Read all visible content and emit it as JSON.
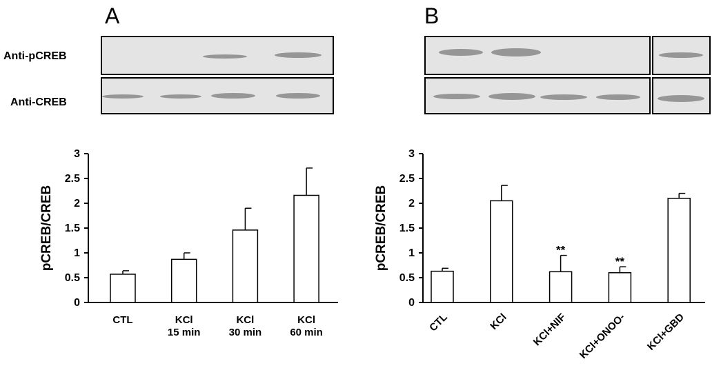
{
  "blot_labels": [
    "Anti-pCREB",
    "Anti-CREB"
  ],
  "chart_data": [
    {
      "type": "bar",
      "panel": "A",
      "y_label": "pCREB/CREB",
      "categories": [
        "CTL",
        "KCl\n15 min",
        "KCl\n30 min",
        "KCl\n60 min"
      ],
      "values": [
        0.57,
        0.87,
        1.46,
        2.16
      ],
      "errors": [
        0.07,
        0.13,
        0.44,
        0.55
      ],
      "color": "#ffffff",
      "ylim": [
        0,
        3
      ],
      "yticks": [
        0,
        0.5,
        1,
        1.5,
        2,
        2.5,
        3
      ],
      "rotate_labels": false
    },
    {
      "type": "bar",
      "panel": "B",
      "y_label": "pCREB/CREB",
      "categories": [
        "CTL",
        "KCl",
        "KCl+NIF",
        "KCl+ONOO-",
        "KCl+GBD"
      ],
      "values": [
        0.63,
        2.05,
        0.62,
        0.6,
        2.1
      ],
      "errors": [
        0.06,
        0.31,
        0.33,
        0.12,
        0.1
      ],
      "color": "#ffffff",
      "ylim": [
        0,
        3
      ],
      "yticks": [
        0,
        0.5,
        1,
        1.5,
        2,
        2.5,
        3
      ],
      "rotate_labels": true,
      "annotations": [
        {
          "label": "**",
          "category": "KCl+NIF"
        },
        {
          "label": "**",
          "category": "KCl+ONOO-"
        }
      ]
    }
  ]
}
